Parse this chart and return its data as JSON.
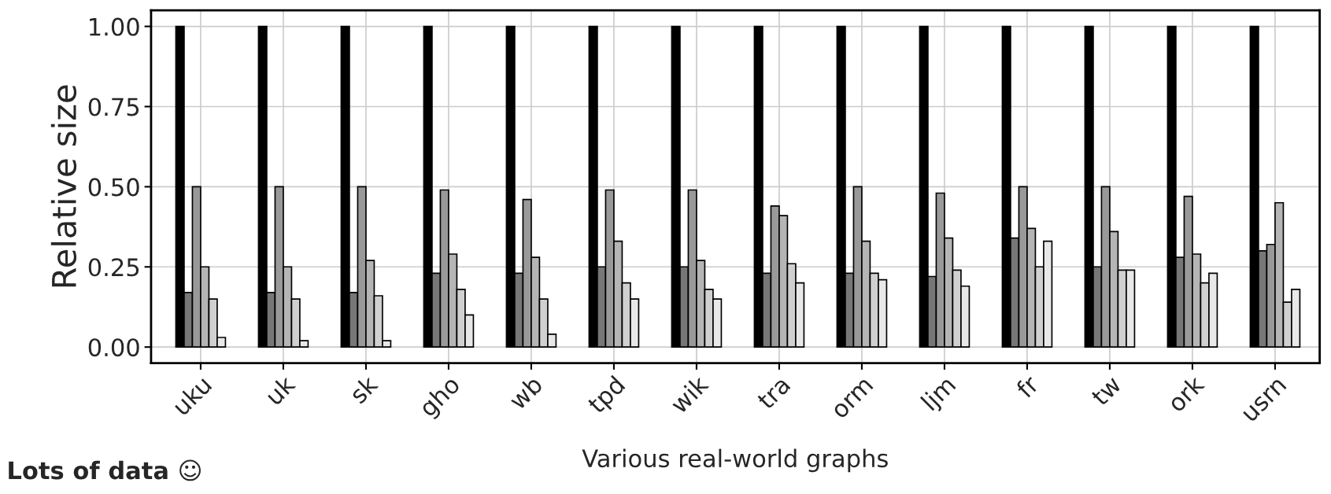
{
  "chart_data": {
    "type": "bar",
    "xlabel": "Various real-world graphs",
    "ylabel": "Relative size",
    "annotations": [
      "Lots of data ☺"
    ],
    "categories": [
      "uku",
      "uk",
      "sk",
      "gho",
      "wb",
      "tpd",
      "wik",
      "tra",
      "orm",
      "ljm",
      "fr",
      "tw",
      "ork",
      "usrn"
    ],
    "series": [
      {
        "color": "#000000",
        "values": [
          1,
          1,
          1,
          1,
          1,
          1,
          1,
          1,
          1,
          1,
          1,
          1,
          1,
          1
        ]
      },
      {
        "color": "#777777",
        "values": [
          0.17,
          0.17,
          0.17,
          0.23,
          0.23,
          0.25,
          0.25,
          0.23,
          0.23,
          0.22,
          0.34,
          0.25,
          0.28,
          0.3
        ]
      },
      {
        "color": "#999999",
        "values": [
          0.5,
          0.5,
          0.5,
          0.49,
          0.46,
          0.49,
          0.49,
          0.44,
          0.5,
          0.48,
          0.5,
          0.5,
          0.47,
          0.32
        ]
      },
      {
        "color": "#b5b5b5",
        "values": [
          0.25,
          0.25,
          0.27,
          0.29,
          0.28,
          0.33,
          0.27,
          0.41,
          0.33,
          0.34,
          0.37,
          0.36,
          0.29,
          0.45
        ]
      },
      {
        "color": "#d0d0d0",
        "values": [
          0.15,
          0.15,
          0.16,
          0.18,
          0.15,
          0.2,
          0.18,
          0.26,
          0.23,
          0.24,
          0.25,
          0.24,
          0.2,
          0.14
        ]
      },
      {
        "color": "#e8e8e8",
        "values": [
          0.03,
          0.02,
          0.02,
          0.1,
          0.04,
          0.15,
          0.15,
          0.2,
          0.21,
          0.19,
          0.33,
          0.24,
          0.23,
          0.18
        ]
      }
    ],
    "ylim": [
      -0.05,
      1.05
    ],
    "yticks": [
      {
        "value": 0,
        "label": "0.00"
      },
      {
        "value": 0.25,
        "label": "0.25"
      },
      {
        "value": 0.5,
        "label": "0.50"
      },
      {
        "value": 0.75,
        "label": "0.75"
      },
      {
        "value": 1,
        "label": "1.00"
      }
    ],
    "grid": true,
    "legend": false
  }
}
